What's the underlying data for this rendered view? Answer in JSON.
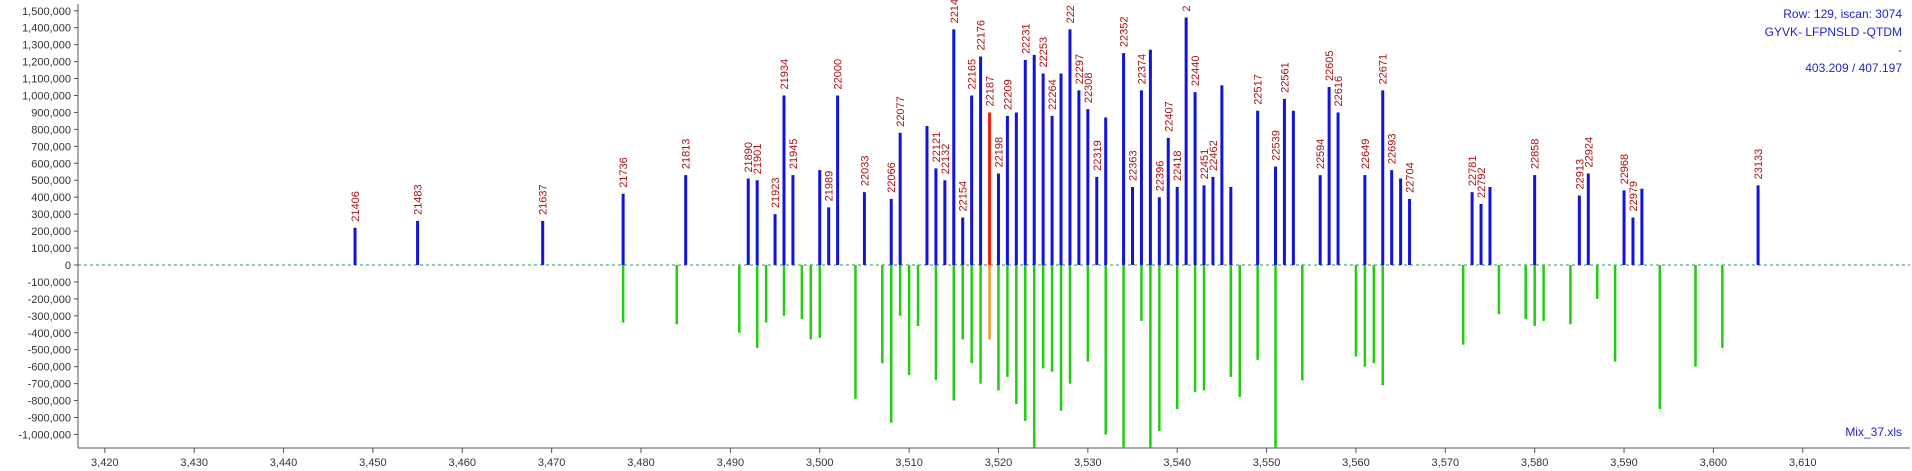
{
  "info": {
    "row_scan": "Row: 129, iscan: 3074",
    "sequence": "GYVK- LFPNSLD -QTDM",
    "dash": "-",
    "mz": "403.209 / 407.197",
    "file": "Mix_37.xls"
  },
  "colors": {
    "positive_peak": "#1414d8",
    "negative_peak": "#22cc11",
    "selected_positive": "#ee2211",
    "selected_negative": "#f39a1e",
    "peak_label": "#aa1111",
    "baseline": "#1aa04a",
    "axis": "#555555",
    "tick_label": "#333333"
  },
  "chart_data": {
    "type": "bar",
    "xlim": [
      3417,
      3622
    ],
    "ylim": [
      -1080000,
      1540000
    ],
    "xticks": [
      3420,
      3430,
      3440,
      3450,
      3460,
      3470,
      3480,
      3490,
      3500,
      3510,
      3520,
      3530,
      3540,
      3550,
      3560,
      3570,
      3580,
      3590,
      3600,
      3610
    ],
    "xtick_labels": [
      "3,420",
      "3,430",
      "3,440",
      "3,450",
      "3,460",
      "3,470",
      "3,480",
      "3,490",
      "3,500",
      "3,510",
      "3,520",
      "3,530",
      "3,540",
      "3,550",
      "3,560",
      "3,570",
      "3,580",
      "3,590",
      "3,600",
      "3,610"
    ],
    "yticks": [
      1500000,
      1400000,
      1300000,
      1200000,
      1100000,
      1000000,
      900000,
      800000,
      700000,
      600000,
      500000,
      400000,
      300000,
      200000,
      100000,
      0,
      -100000,
      -200000,
      -300000,
      -400000,
      -500000,
      -600000,
      -700000,
      -800000,
      -900000,
      -1000000
    ],
    "ytick_labels": [
      "1,500,000",
      "1,400,000",
      "1,300,000",
      "1,200,000",
      "1,100,000",
      "1,000,000",
      "900,000",
      "800,000",
      "700,000",
      "600,000",
      "500,000",
      "400,000",
      "300,000",
      "200,000",
      "100,000",
      "0",
      "-100,000",
      "-200,000",
      "-300,000",
      "-400,000",
      "-500,000",
      "-600,000",
      "-700,000",
      "-800,000",
      "-900,000",
      "-1,000,000"
    ],
    "grid": false,
    "selected_x": 3519,
    "positive_peaks": [
      {
        "x": 3448,
        "y": 220000,
        "label": "21406"
      },
      {
        "x": 3455,
        "y": 260000,
        "label": "21483"
      },
      {
        "x": 3469,
        "y": 260000,
        "label": "21637"
      },
      {
        "x": 3478,
        "y": 420000,
        "label": "21736"
      },
      {
        "x": 3485,
        "y": 530000,
        "label": "21813"
      },
      {
        "x": 3492,
        "y": 510000,
        "label": "21890"
      },
      {
        "x": 3493,
        "y": 500000,
        "label": "21901"
      },
      {
        "x": 3495,
        "y": 300000,
        "label": "21923"
      },
      {
        "x": 3496,
        "y": 1000000,
        "label": "21934"
      },
      {
        "x": 3497,
        "y": 530000,
        "label": "21945"
      },
      {
        "x": 3500,
        "y": 560000,
        "label": ""
      },
      {
        "x": 3501,
        "y": 340000,
        "label": "21989"
      },
      {
        "x": 3502,
        "y": 1000000,
        "label": "22000"
      },
      {
        "x": 3505,
        "y": 430000,
        "label": "22033"
      },
      {
        "x": 3508,
        "y": 390000,
        "label": "22066"
      },
      {
        "x": 3509,
        "y": 780000,
        "label": "22077"
      },
      {
        "x": 3512,
        "y": 820000,
        "label": ""
      },
      {
        "x": 3513,
        "y": 570000,
        "label": "22121"
      },
      {
        "x": 3514,
        "y": 500000,
        "label": "22132"
      },
      {
        "x": 3515,
        "y": 1390000,
        "label": "2214"
      },
      {
        "x": 3516,
        "y": 280000,
        "label": "22154"
      },
      {
        "x": 3517,
        "y": 1000000,
        "label": "22165"
      },
      {
        "x": 3518,
        "y": 1230000,
        "label": "22176"
      },
      {
        "x": 3519,
        "y": 900000,
        "label": "22187"
      },
      {
        "x": 3520,
        "y": 540000,
        "label": "22198"
      },
      {
        "x": 3521,
        "y": 880000,
        "label": "22209"
      },
      {
        "x": 3522,
        "y": 900000,
        "label": ""
      },
      {
        "x": 3523,
        "y": 1210000,
        "label": "22231"
      },
      {
        "x": 3524,
        "y": 1240000,
        "label": ""
      },
      {
        "x": 3525,
        "y": 1130000,
        "label": "22253"
      },
      {
        "x": 3526,
        "y": 880000,
        "label": "22264"
      },
      {
        "x": 3527,
        "y": 1130000,
        "label": ""
      },
      {
        "x": 3528,
        "y": 1390000,
        "label": "222"
      },
      {
        "x": 3529,
        "y": 1030000,
        "label": "22297"
      },
      {
        "x": 3530,
        "y": 920000,
        "label": "22308"
      },
      {
        "x": 3531,
        "y": 520000,
        "label": "22319"
      },
      {
        "x": 3532,
        "y": 870000,
        "label": ""
      },
      {
        "x": 3534,
        "y": 1250000,
        "label": "22352"
      },
      {
        "x": 3535,
        "y": 460000,
        "label": "22363"
      },
      {
        "x": 3536,
        "y": 1030000,
        "label": "22374"
      },
      {
        "x": 3537,
        "y": 1270000,
        "label": ""
      },
      {
        "x": 3538,
        "y": 400000,
        "label": "22396"
      },
      {
        "x": 3539,
        "y": 750000,
        "label": "22407"
      },
      {
        "x": 3540,
        "y": 460000,
        "label": "22418"
      },
      {
        "x": 3541,
        "y": 1460000,
        "label": "2"
      },
      {
        "x": 3542,
        "y": 1020000,
        "label": "22440"
      },
      {
        "x": 3543,
        "y": 470000,
        "label": "22451"
      },
      {
        "x": 3544,
        "y": 520000,
        "label": "22462"
      },
      {
        "x": 3545,
        "y": 1060000,
        "label": ""
      },
      {
        "x": 3546,
        "y": 460000,
        "label": ""
      },
      {
        "x": 3549,
        "y": 910000,
        "label": "22517"
      },
      {
        "x": 3551,
        "y": 580000,
        "label": "22539"
      },
      {
        "x": 3552,
        "y": 980000,
        "label": "22561"
      },
      {
        "x": 3553,
        "y": 910000,
        "label": ""
      },
      {
        "x": 3556,
        "y": 530000,
        "label": "22594"
      },
      {
        "x": 3557,
        "y": 1050000,
        "label": "22605"
      },
      {
        "x": 3558,
        "y": 900000,
        "label": "22616"
      },
      {
        "x": 3561,
        "y": 530000,
        "label": "22649"
      },
      {
        "x": 3563,
        "y": 1030000,
        "label": "22671"
      },
      {
        "x": 3564,
        "y": 560000,
        "label": "22693"
      },
      {
        "x": 3565,
        "y": 510000,
        "label": ""
      },
      {
        "x": 3566,
        "y": 390000,
        "label": "22704"
      },
      {
        "x": 3573,
        "y": 430000,
        "label": "22781"
      },
      {
        "x": 3574,
        "y": 360000,
        "label": "22792"
      },
      {
        "x": 3575,
        "y": 460000,
        "label": ""
      },
      {
        "x": 3580,
        "y": 530000,
        "label": "22858"
      },
      {
        "x": 3585,
        "y": 410000,
        "label": "22913"
      },
      {
        "x": 3586,
        "y": 540000,
        "label": "22924"
      },
      {
        "x": 3590,
        "y": 440000,
        "label": "22968"
      },
      {
        "x": 3591,
        "y": 280000,
        "label": "22979"
      },
      {
        "x": 3592,
        "y": 450000,
        "label": ""
      },
      {
        "x": 3605,
        "y": 470000,
        "label": "23133"
      }
    ],
    "negative_peaks": [
      {
        "x": 3478,
        "y": -340000
      },
      {
        "x": 3484,
        "y": -350000
      },
      {
        "x": 3491,
        "y": -400000
      },
      {
        "x": 3493,
        "y": -490000
      },
      {
        "x": 3494,
        "y": -340000
      },
      {
        "x": 3496,
        "y": -300000
      },
      {
        "x": 3498,
        "y": -320000
      },
      {
        "x": 3499,
        "y": -440000
      },
      {
        "x": 3500,
        "y": -430000
      },
      {
        "x": 3504,
        "y": -790000
      },
      {
        "x": 3507,
        "y": -580000
      },
      {
        "x": 3508,
        "y": -930000
      },
      {
        "x": 3509,
        "y": -300000
      },
      {
        "x": 3510,
        "y": -650000
      },
      {
        "x": 3511,
        "y": -360000
      },
      {
        "x": 3513,
        "y": -680000
      },
      {
        "x": 3515,
        "y": -800000
      },
      {
        "x": 3516,
        "y": -440000
      },
      {
        "x": 3517,
        "y": -580000
      },
      {
        "x": 3518,
        "y": -700000
      },
      {
        "x": 3519,
        "y": -440000
      },
      {
        "x": 3520,
        "y": -740000
      },
      {
        "x": 3521,
        "y": -660000
      },
      {
        "x": 3522,
        "y": -820000
      },
      {
        "x": 3523,
        "y": -920000
      },
      {
        "x": 3524,
        "y": -1080000
      },
      {
        "x": 3525,
        "y": -610000
      },
      {
        "x": 3526,
        "y": -630000
      },
      {
        "x": 3527,
        "y": -860000
      },
      {
        "x": 3528,
        "y": -700000
      },
      {
        "x": 3530,
        "y": -570000
      },
      {
        "x": 3532,
        "y": -1000000
      },
      {
        "x": 3534,
        "y": -1080000
      },
      {
        "x": 3536,
        "y": -330000
      },
      {
        "x": 3537,
        "y": -1080000
      },
      {
        "x": 3538,
        "y": -980000
      },
      {
        "x": 3540,
        "y": -850000
      },
      {
        "x": 3542,
        "y": -750000
      },
      {
        "x": 3543,
        "y": -740000
      },
      {
        "x": 3546,
        "y": -660000
      },
      {
        "x": 3547,
        "y": -780000
      },
      {
        "x": 3549,
        "y": -560000
      },
      {
        "x": 3551,
        "y": -1080000
      },
      {
        "x": 3554,
        "y": -680000
      },
      {
        "x": 3560,
        "y": -540000
      },
      {
        "x": 3561,
        "y": -600000
      },
      {
        "x": 3562,
        "y": -580000
      },
      {
        "x": 3563,
        "y": -710000
      },
      {
        "x": 3572,
        "y": -470000
      },
      {
        "x": 3576,
        "y": -290000
      },
      {
        "x": 3579,
        "y": -320000
      },
      {
        "x": 3580,
        "y": -360000
      },
      {
        "x": 3581,
        "y": -330000
      },
      {
        "x": 3584,
        "y": -350000
      },
      {
        "x": 3587,
        "y": -200000
      },
      {
        "x": 3589,
        "y": -570000
      },
      {
        "x": 3594,
        "y": -850000
      },
      {
        "x": 3598,
        "y": -600000
      },
      {
        "x": 3601,
        "y": -490000
      }
    ]
  }
}
